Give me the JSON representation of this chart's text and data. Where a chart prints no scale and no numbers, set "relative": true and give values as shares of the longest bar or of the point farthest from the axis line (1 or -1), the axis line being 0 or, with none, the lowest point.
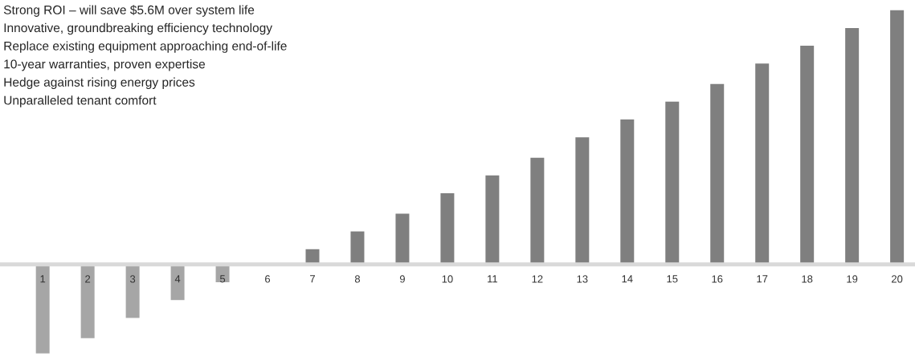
{
  "chart_data": {
    "type": "bar",
    "relative": true,
    "categories": [
      "1",
      "2",
      "3",
      "4",
      "5",
      "6",
      "7",
      "8",
      "9",
      "10",
      "11",
      "12",
      "13",
      "14",
      "15",
      "16",
      "17",
      "18",
      "19",
      "20"
    ],
    "values": [
      -0.35,
      -0.29,
      -0.21,
      -0.14,
      -0.07,
      0,
      0.06,
      0.13,
      0.2,
      0.28,
      0.35,
      0.42,
      0.5,
      0.57,
      0.64,
      0.71,
      0.79,
      0.86,
      0.93,
      1
    ],
    "colors": [
      "#a6a6a6",
      "#a6a6a6",
      "#a6a6a6",
      "#a6a6a6",
      "#a6a6a6",
      "#a6a6a6",
      "#7f7f7f",
      "#7f7f7f",
      "#7f7f7f",
      "#7f7f7f",
      "#7f7f7f",
      "#7f7f7f",
      "#7f7f7f",
      "#7f7f7f",
      "#7f7f7f",
      "#7f7f7f",
      "#7f7f7f",
      "#7f7f7f",
      "#7f7f7f",
      "#7f7f7f"
    ],
    "annotations": [
      "Strong ROI – will save $5.6M over system life",
      "Innovative, groundbreaking efficiency technology",
      "Replace existing equipment approaching end-of-life",
      "10-year warranties, proven expertise",
      "Hedge against rising energy prices",
      "Unparalleled tenant comfort"
    ]
  }
}
